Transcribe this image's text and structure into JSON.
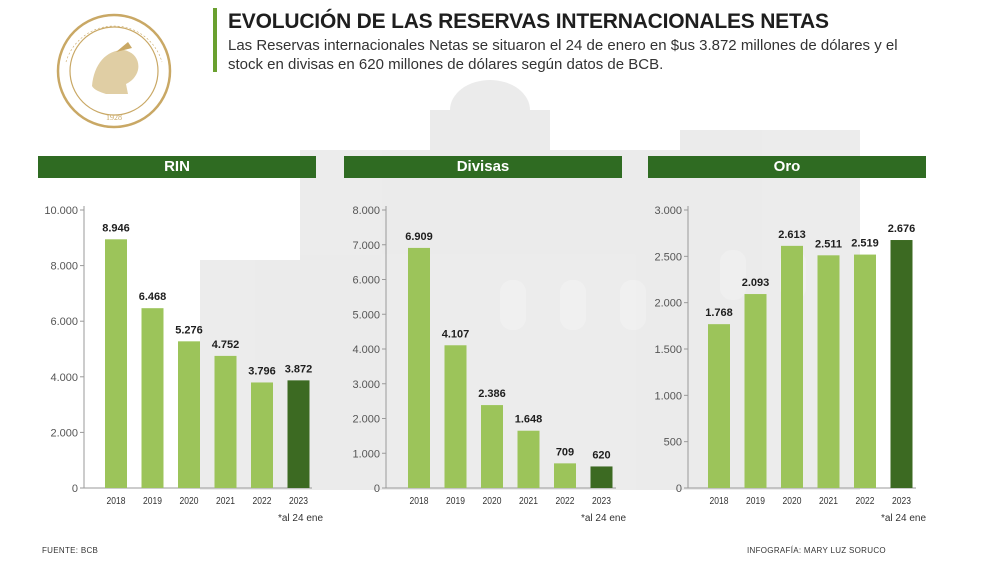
{
  "header": {
    "title": "EVOLUCIÓN DE LAS RESERVAS INTERNACIONALES NETAS",
    "subtitle": "Las Reservas internacionales Netas se situaron el 24 de enero en $us 3.872 millones de dólares y el stock en divisas en 620 millones de dólares según datos de BCB."
  },
  "logo": {
    "text_top": "BANCO CENTRAL DE BOLIVIA",
    "year": "1928"
  },
  "colors": {
    "bar_light": "#9cc45a",
    "bar_dark": "#3c6a22",
    "header_bg": "#2f6b22",
    "accent": "#6aa02f"
  },
  "chart_data": [
    {
      "type": "bar",
      "title": "RIN",
      "categories": [
        "2018",
        "2019",
        "2020",
        "2021",
        "2022",
        "2023"
      ],
      "values": [
        8946,
        6468,
        5276,
        4752,
        3796,
        3872
      ],
      "value_labels": [
        "8.946",
        "6.468",
        "5.276",
        "4.752",
        "3.796",
        "3.872"
      ],
      "highlight_index": 5,
      "note": "*al 24 ene",
      "ylim": [
        0,
        10000
      ],
      "yticks": [
        0,
        2000,
        4000,
        6000,
        8000,
        10000
      ],
      "ytick_labels": [
        "0",
        "2.000",
        "4.000",
        "6.000",
        "8.000",
        "10.000"
      ]
    },
    {
      "type": "bar",
      "title": "Divisas",
      "categories": [
        "2018",
        "2019",
        "2020",
        "2021",
        "2022",
        "2023"
      ],
      "values": [
        6909,
        4107,
        2386,
        1648,
        709,
        620
      ],
      "value_labels": [
        "6.909",
        "4.107",
        "2.386",
        "1.648",
        "709",
        "620"
      ],
      "highlight_index": 5,
      "note": "*al 24 ene",
      "ylim": [
        0,
        8000
      ],
      "yticks": [
        0,
        1000,
        2000,
        3000,
        4000,
        5000,
        6000,
        7000,
        8000
      ],
      "ytick_labels": [
        "0",
        "1.000",
        "2.000",
        "3.000",
        "4.000",
        "5.000",
        "6.000",
        "7.000",
        "8.000"
      ]
    },
    {
      "type": "bar",
      "title": "Oro",
      "categories": [
        "2018",
        "2019",
        "2020",
        "2021",
        "2022",
        "2023"
      ],
      "values": [
        1768,
        2093,
        2613,
        2511,
        2519,
        2676
      ],
      "value_labels": [
        "1.768",
        "2.093",
        "2.613",
        "2.511",
        "2.519",
        "2.676"
      ],
      "highlight_index": 5,
      "note": "*al 24 ene",
      "ylim": [
        0,
        3000
      ],
      "yticks": [
        0,
        500,
        1000,
        1500,
        2000,
        2500,
        3000
      ],
      "ytick_labels": [
        "0",
        "500",
        "1.000",
        "1.500",
        "2.000",
        "2.500",
        "3.000"
      ]
    }
  ],
  "footer": {
    "source": "FUENTE: BCB",
    "credit": "INFOGRAFÍA: MARY LUZ SORUCO"
  }
}
